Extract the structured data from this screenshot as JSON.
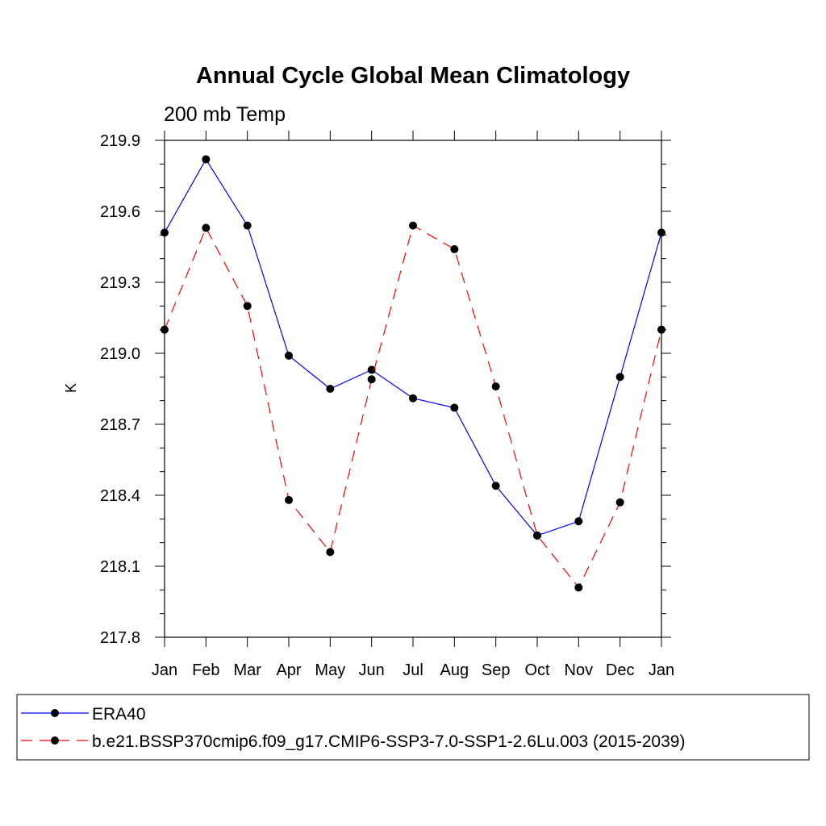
{
  "chart_data": {
    "type": "line",
    "title": "Annual Cycle Global Mean Climatology",
    "subtitle": "200 mb Temp",
    "xlabel": "",
    "ylabel": "K",
    "categories": [
      "Jan",
      "Feb",
      "Mar",
      "Apr",
      "May",
      "Jun",
      "Jul",
      "Aug",
      "Sep",
      "Oct",
      "Nov",
      "Dec",
      "Jan"
    ],
    "ylim": [
      217.8,
      219.9
    ],
    "yticks": [
      217.8,
      218.1,
      218.4,
      218.7,
      219.0,
      219.3,
      219.6,
      219.9
    ],
    "ytick_labels": [
      "217.8",
      "218.1",
      "218.4",
      "218.7",
      "219.0",
      "219.3",
      "219.6",
      "219.9"
    ],
    "grid": false,
    "legend_position": "bottom",
    "series": [
      {
        "name": "ERA40",
        "color": "#0000ff",
        "dash": "solid",
        "values": [
          219.51,
          219.82,
          219.54,
          218.99,
          218.85,
          218.93,
          218.81,
          218.77,
          218.44,
          218.23,
          218.29,
          218.9,
          219.51
        ]
      },
      {
        "name": "b.e21.BSSP370cmip6.f09_g17.CMIP6-SSP3-7.0-SSP1-2.6Lu.003 (2015-2039)",
        "color": "#ff0000",
        "dash": "dashed",
        "values": [
          219.1,
          219.53,
          219.2,
          218.38,
          218.16,
          218.89,
          219.54,
          219.44,
          218.86,
          218.23,
          218.01,
          218.37,
          219.1
        ]
      }
    ]
  }
}
